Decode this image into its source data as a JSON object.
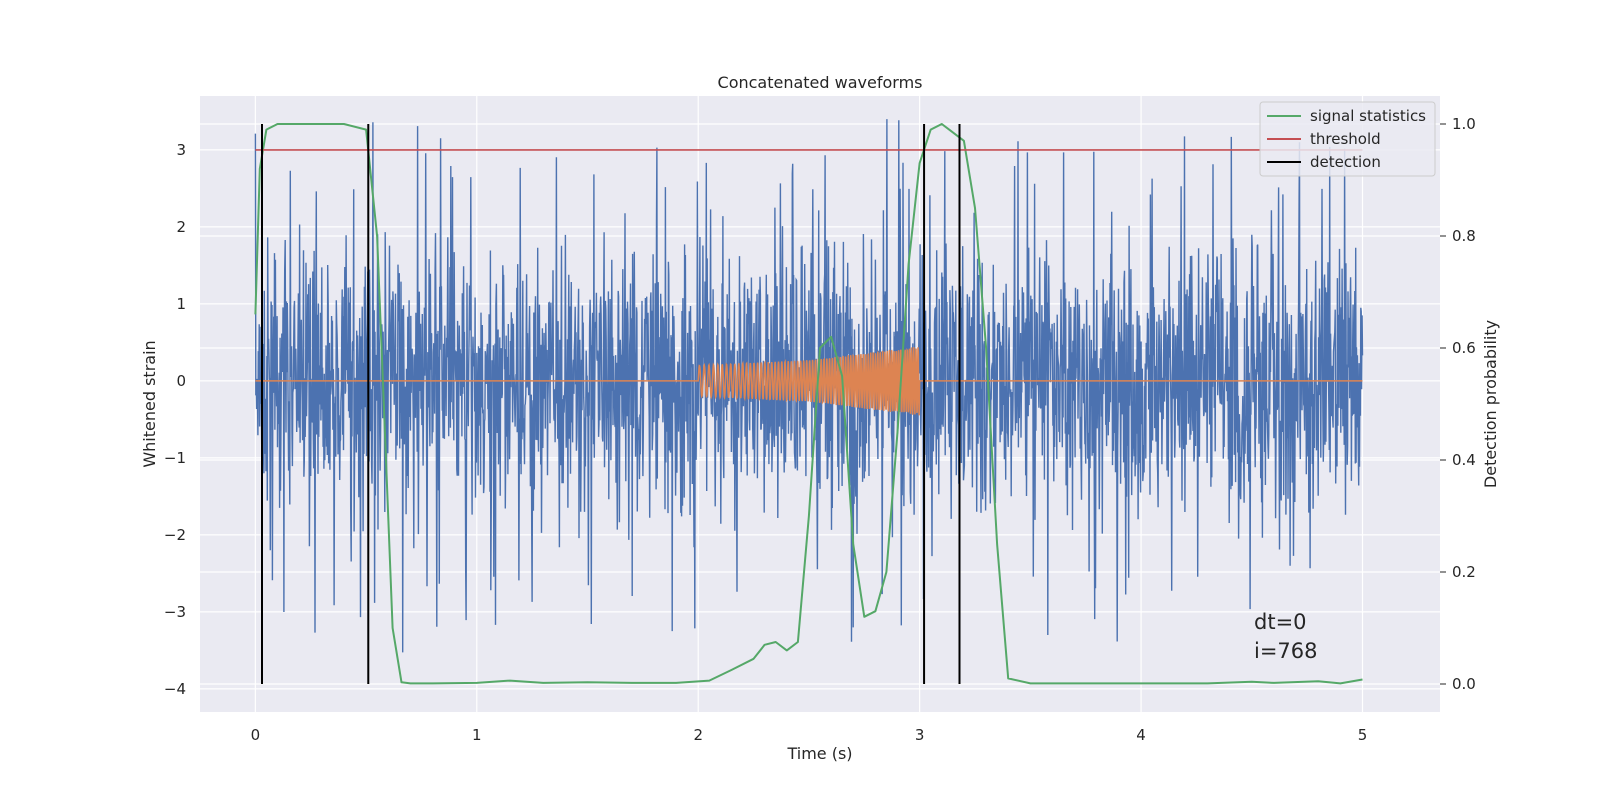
{
  "chart_data": {
    "type": "line",
    "title": "Concatenated waveforms",
    "xlabel": "Time (s)",
    "ylabel": "Whitened strain",
    "y2label": "Detection probability",
    "xlim": [
      -0.25,
      5.35
    ],
    "ylim": [
      -4.3,
      3.7
    ],
    "y2lim": [
      -0.05,
      1.05
    ],
    "xticks": [
      0,
      1,
      2,
      3,
      4,
      5
    ],
    "yticks": [
      -4,
      -3,
      -2,
      -1,
      0,
      1,
      2,
      3
    ],
    "y2ticks": [
      0.0,
      0.2,
      0.4,
      0.6,
      0.8,
      1.0
    ],
    "y2tick_labels": [
      "0.0",
      "0.2",
      "0.4",
      "0.6",
      "0.8",
      "1.0"
    ],
    "grid": true,
    "legend_position": "top-right",
    "annotations": [
      "dt=0",
      "i=768"
    ],
    "colors": {
      "strain": "#4c72b0",
      "template": "#dd8452",
      "signal_statistics": "#55a868",
      "threshold": "#c44e52",
      "detection": "#000000",
      "background": "#eaeaf2",
      "grid": "#ffffff"
    },
    "series": [
      {
        "name": "",
        "axis": "left",
        "kind": "noise",
        "x_range": [
          0,
          5
        ],
        "envelope_typical": 1.5,
        "peak_max": 3.4,
        "peak_min": -3.9
      },
      {
        "name": "",
        "axis": "left",
        "kind": "chirp",
        "x": [
          0,
          2,
          2.5,
          3.0,
          3.0,
          5
        ],
        "amplitude": [
          0,
          0.2,
          0.27,
          0.45,
          0,
          0
        ]
      },
      {
        "name": "signal statistics",
        "axis": "right",
        "x": [
          0,
          0.02,
          0.05,
          0.1,
          0.2,
          0.4,
          0.5,
          0.55,
          0.58,
          0.62,
          0.66,
          0.7,
          0.8,
          1.0,
          1.15,
          1.3,
          1.5,
          1.7,
          1.9,
          2.05,
          2.15,
          2.25,
          2.3,
          2.35,
          2.4,
          2.45,
          2.5,
          2.55,
          2.6,
          2.65,
          2.7,
          2.75,
          2.8,
          2.85,
          2.9,
          2.95,
          3.0,
          3.05,
          3.1,
          3.2,
          3.25,
          3.3,
          3.35,
          3.4,
          3.5,
          3.8,
          4.0,
          4.3,
          4.5,
          4.6,
          4.8,
          4.9,
          5.0
        ],
        "values": [
          0.66,
          0.92,
          0.99,
          1.0,
          1.0,
          1.0,
          0.99,
          0.8,
          0.5,
          0.1,
          0.003,
          0.001,
          0.001,
          0.002,
          0.006,
          0.002,
          0.003,
          0.002,
          0.002,
          0.006,
          0.025,
          0.045,
          0.07,
          0.075,
          0.06,
          0.075,
          0.3,
          0.6,
          0.62,
          0.55,
          0.25,
          0.12,
          0.13,
          0.2,
          0.45,
          0.75,
          0.93,
          0.99,
          1.0,
          0.97,
          0.85,
          0.6,
          0.25,
          0.01,
          0.001,
          0.001,
          0.001,
          0.001,
          0.004,
          0.002,
          0.005,
          0.001,
          0.008
        ]
      },
      {
        "name": "threshold",
        "axis": "left",
        "x": [
          0,
          5
        ],
        "values": [
          3.0,
          3.0
        ]
      },
      {
        "name": "detection",
        "axis": "right",
        "kind": "vlines",
        "x": [
          0.03,
          0.51,
          3.02,
          3.18
        ],
        "ymin": 0.0,
        "ymax": 1.0
      }
    ]
  }
}
